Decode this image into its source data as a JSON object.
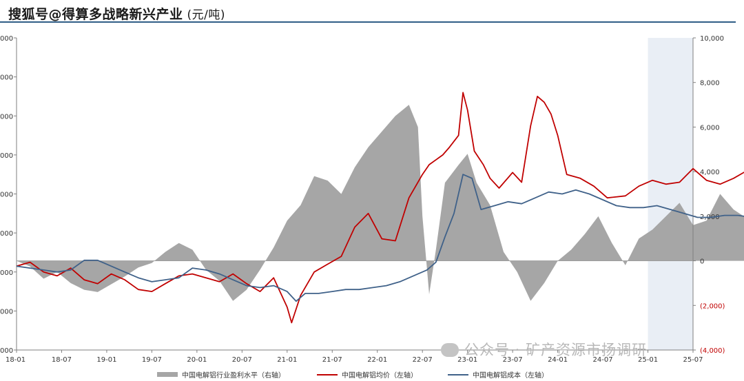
{
  "header": {
    "title": "搜狐号@得算多战略新兴产业",
    "unit": "(元/吨)"
  },
  "watermark": "公众号 · 矿产资源市扬调研",
  "chart_data": {
    "type": "line",
    "x_ticks": [
      "18-01",
      "18-07",
      "19-01",
      "19-07",
      "20-01",
      "20-07",
      "21-01",
      "21-07",
      "22-01",
      "22-07",
      "23-01",
      "23-07",
      "24-01",
      "24-07",
      "25-01",
      "25-07"
    ],
    "right_axis_ticks": [
      "10,000",
      "8,000",
      "6,000",
      "4,000",
      "2,000",
      "0",
      "(2,000)",
      "(4,000)"
    ],
    "left_axis_ticks": [
      "000",
      "000",
      "000",
      "000",
      "000",
      "000",
      "000",
      "000",
      "000"
    ],
    "right_ylim": [
      -4000,
      10000
    ],
    "left_ylim": [
      10000,
      26000
    ],
    "shaded_region_start": "25-01",
    "colors": {
      "profit": "#a6a6a6",
      "price": "#c00000",
      "cost": "#3f6189",
      "shade": "#e9eef5"
    },
    "series": [
      {
        "name": "中国电解铝行业盈利水平(右轴)",
        "type": "area",
        "axis": "right",
        "points": [
          [
            0,
            0
          ],
          [
            0.3,
            -250
          ],
          [
            0.6,
            -800
          ],
          [
            0.9,
            -500
          ],
          [
            1.2,
            -1000
          ],
          [
            1.5,
            -1300
          ],
          [
            1.8,
            -1400
          ],
          [
            2.1,
            -1050
          ],
          [
            2.4,
            -700
          ],
          [
            2.7,
            -300
          ],
          [
            3,
            -100
          ],
          [
            3.3,
            400
          ],
          [
            3.6,
            800
          ],
          [
            3.9,
            500
          ],
          [
            4.2,
            -400
          ],
          [
            4.5,
            -900
          ],
          [
            4.8,
            -1800
          ],
          [
            5.1,
            -1300
          ],
          [
            5.4,
            -400
          ],
          [
            5.7,
            600
          ],
          [
            6,
            1800
          ],
          [
            6.3,
            2500
          ],
          [
            6.6,
            3800
          ],
          [
            6.9,
            3600
          ],
          [
            7.2,
            3000
          ],
          [
            7.5,
            4200
          ],
          [
            7.8,
            5100
          ],
          [
            8.1,
            5800
          ],
          [
            8.4,
            6500
          ],
          [
            8.7,
            7000
          ],
          [
            8.9,
            6000
          ],
          [
            9,
            2000
          ],
          [
            9.15,
            -1500
          ],
          [
            9.3,
            500
          ],
          [
            9.5,
            3500
          ],
          [
            9.8,
            4300
          ],
          [
            10,
            4800
          ],
          [
            10.2,
            3500
          ],
          [
            10.5,
            2500
          ],
          [
            10.8,
            400
          ],
          [
            11.1,
            -500
          ],
          [
            11.4,
            -1800
          ],
          [
            11.7,
            -1000
          ],
          [
            12,
            0
          ],
          [
            12.3,
            500
          ],
          [
            12.6,
            1200
          ],
          [
            12.9,
            2000
          ],
          [
            13.2,
            800
          ],
          [
            13.5,
            -200
          ],
          [
            13.8,
            1000
          ],
          [
            14.1,
            1400
          ],
          [
            14.4,
            2000
          ],
          [
            14.7,
            2600
          ],
          [
            15,
            1600
          ],
          [
            15.3,
            1800
          ],
          [
            15.6,
            3000
          ],
          [
            15.9,
            2300
          ],
          [
            16.2,
            1900
          ],
          [
            16.5,
            1700
          ],
          [
            16.8,
            2000
          ],
          [
            17.1,
            2300
          ],
          [
            17.4,
            2800
          ],
          [
            17.7,
            2700
          ],
          [
            17.95,
            400
          ],
          [
            18.2,
            -800
          ],
          [
            18.4,
            -2200
          ],
          [
            18.6,
            -1800
          ],
          [
            18.8,
            1000
          ],
          [
            19,
            2500
          ],
          [
            19.3,
            3000
          ],
          [
            19.6,
            2700
          ],
          [
            19.9,
            3000
          ],
          [
            20.2,
            3200
          ],
          [
            20.5,
            3500
          ],
          [
            20.8,
            3800
          ],
          [
            21.1,
            4100
          ],
          [
            21.4,
            4600
          ]
        ]
      },
      {
        "name": "中国电解铝均价(左轴)",
        "type": "line",
        "axis": "left",
        "points": [
          [
            0,
            14300
          ],
          [
            0.3,
            14500
          ],
          [
            0.6,
            14000
          ],
          [
            0.9,
            13800
          ],
          [
            1.2,
            14200
          ],
          [
            1.5,
            13600
          ],
          [
            1.8,
            13400
          ],
          [
            2.1,
            13900
          ],
          [
            2.4,
            13600
          ],
          [
            2.7,
            13100
          ],
          [
            3,
            13000
          ],
          [
            3.3,
            13400
          ],
          [
            3.6,
            13800
          ],
          [
            3.9,
            13900
          ],
          [
            4.2,
            13700
          ],
          [
            4.5,
            13500
          ],
          [
            4.8,
            13900
          ],
          [
            5.1,
            13400
          ],
          [
            5.4,
            13000
          ],
          [
            5.7,
            13700
          ],
          [
            6,
            12200
          ],
          [
            6.1,
            11400
          ],
          [
            6.3,
            12800
          ],
          [
            6.6,
            14000
          ],
          [
            6.9,
            14400
          ],
          [
            7.2,
            14800
          ],
          [
            7.5,
            16300
          ],
          [
            7.8,
            17000
          ],
          [
            8.1,
            15700
          ],
          [
            8.4,
            15600
          ],
          [
            8.7,
            17800
          ],
          [
            9,
            19000
          ],
          [
            9.15,
            19500
          ],
          [
            9.45,
            20000
          ],
          [
            9.6,
            20400
          ],
          [
            9.8,
            21000
          ],
          [
            9.9,
            23200
          ],
          [
            10,
            22300
          ],
          [
            10.15,
            20200
          ],
          [
            10.35,
            19500
          ],
          [
            10.5,
            18800
          ],
          [
            10.7,
            18300
          ],
          [
            11,
            19100
          ],
          [
            11.2,
            18600
          ],
          [
            11.4,
            21500
          ],
          [
            11.55,
            23000
          ],
          [
            11.7,
            22700
          ],
          [
            11.85,
            22100
          ],
          [
            12,
            21000
          ],
          [
            12.2,
            19000
          ],
          [
            12.5,
            18800
          ],
          [
            12.8,
            18400
          ],
          [
            13.1,
            17800
          ],
          [
            13.5,
            17900
          ],
          [
            13.8,
            18400
          ],
          [
            14.1,
            18700
          ],
          [
            14.4,
            18500
          ],
          [
            14.7,
            18600
          ],
          [
            15,
            19300
          ],
          [
            15.3,
            18700
          ],
          [
            15.6,
            18500
          ],
          [
            15.9,
            18800
          ],
          [
            16.2,
            19200
          ],
          [
            16.5,
            19500
          ],
          [
            16.8,
            19800
          ],
          [
            17.1,
            20300
          ],
          [
            17.4,
            19700
          ],
          [
            17.7,
            19300
          ],
          [
            17.95,
            20000
          ],
          [
            18.2,
            20700
          ],
          [
            18.5,
            20100
          ],
          [
            18.8,
            19900
          ],
          [
            19.1,
            20100
          ],
          [
            19.4,
            20200
          ],
          [
            19.7,
            20400
          ],
          [
            20,
            20600
          ],
          [
            20.3,
            20400
          ],
          [
            20.6,
            20700
          ],
          [
            20.9,
            20900
          ],
          [
            21.1,
            21400
          ],
          [
            21.25,
            21300
          ],
          [
            21.4,
            21200
          ]
        ]
      },
      {
        "name": "中国电解铝成本(左轴)",
        "type": "line",
        "axis": "left",
        "points": [
          [
            0,
            14300
          ],
          [
            0.3,
            14200
          ],
          [
            0.6,
            14100
          ],
          [
            0.9,
            14000
          ],
          [
            1.2,
            14100
          ],
          [
            1.5,
            14600
          ],
          [
            1.8,
            14600
          ],
          [
            2.1,
            14300
          ],
          [
            2.4,
            14000
          ],
          [
            2.7,
            13700
          ],
          [
            3,
            13500
          ],
          [
            3.3,
            13600
          ],
          [
            3.6,
            13700
          ],
          [
            3.9,
            14200
          ],
          [
            4.2,
            14100
          ],
          [
            4.5,
            13900
          ],
          [
            4.8,
            13600
          ],
          [
            5.1,
            13300
          ],
          [
            5.4,
            13200
          ],
          [
            5.7,
            13300
          ],
          [
            6,
            13000
          ],
          [
            6.2,
            12500
          ],
          [
            6.4,
            12900
          ],
          [
            6.7,
            12900
          ],
          [
            7,
            13000
          ],
          [
            7.3,
            13100
          ],
          [
            7.6,
            13100
          ],
          [
            7.9,
            13200
          ],
          [
            8.2,
            13300
          ],
          [
            8.5,
            13500
          ],
          [
            8.8,
            13800
          ],
          [
            9.1,
            14100
          ],
          [
            9.3,
            14500
          ],
          [
            9.5,
            15800
          ],
          [
            9.7,
            17000
          ],
          [
            9.9,
            19000
          ],
          [
            10.1,
            18800
          ],
          [
            10.3,
            17200
          ],
          [
            10.6,
            17400
          ],
          [
            10.9,
            17600
          ],
          [
            11.2,
            17500
          ],
          [
            11.5,
            17800
          ],
          [
            11.8,
            18100
          ],
          [
            12.1,
            18000
          ],
          [
            12.4,
            18200
          ],
          [
            12.7,
            18000
          ],
          [
            13,
            17700
          ],
          [
            13.3,
            17400
          ],
          [
            13.6,
            17300
          ],
          [
            13.9,
            17300
          ],
          [
            14.2,
            17400
          ],
          [
            14.5,
            17200
          ],
          [
            14.8,
            17000
          ],
          [
            15.1,
            16800
          ],
          [
            15.4,
            16800
          ],
          [
            15.7,
            16900
          ],
          [
            16,
            16900
          ],
          [
            16.3,
            16800
          ],
          [
            16.6,
            16700
          ],
          [
            16.9,
            16700
          ],
          [
            17.2,
            16900
          ],
          [
            17.5,
            17100
          ],
          [
            17.8,
            17300
          ],
          [
            18.1,
            17300
          ],
          [
            18.4,
            17400
          ],
          [
            18.7,
            17700
          ],
          [
            19,
            18500
          ],
          [
            19.3,
            19000
          ],
          [
            19.6,
            19200
          ],
          [
            19.8,
            19100
          ],
          [
            20,
            18800
          ],
          [
            20.2,
            17400
          ],
          [
            20.4,
            16700
          ],
          [
            20.6,
            16800
          ],
          [
            20.8,
            16500
          ],
          [
            21,
            16400
          ],
          [
            21.2,
            16300
          ],
          [
            21.4,
            16300
          ]
        ]
      }
    ],
    "legend": [
      {
        "label": "中国电解铝行业盈利水平（右轴）",
        "kind": "area",
        "color": "#a6a6a6"
      },
      {
        "label": "中国电解铝均价（左轴）",
        "kind": "line",
        "color": "#c00000"
      },
      {
        "label": "中国电解铝成本（左轴）",
        "kind": "line",
        "color": "#3f6189"
      }
    ]
  }
}
